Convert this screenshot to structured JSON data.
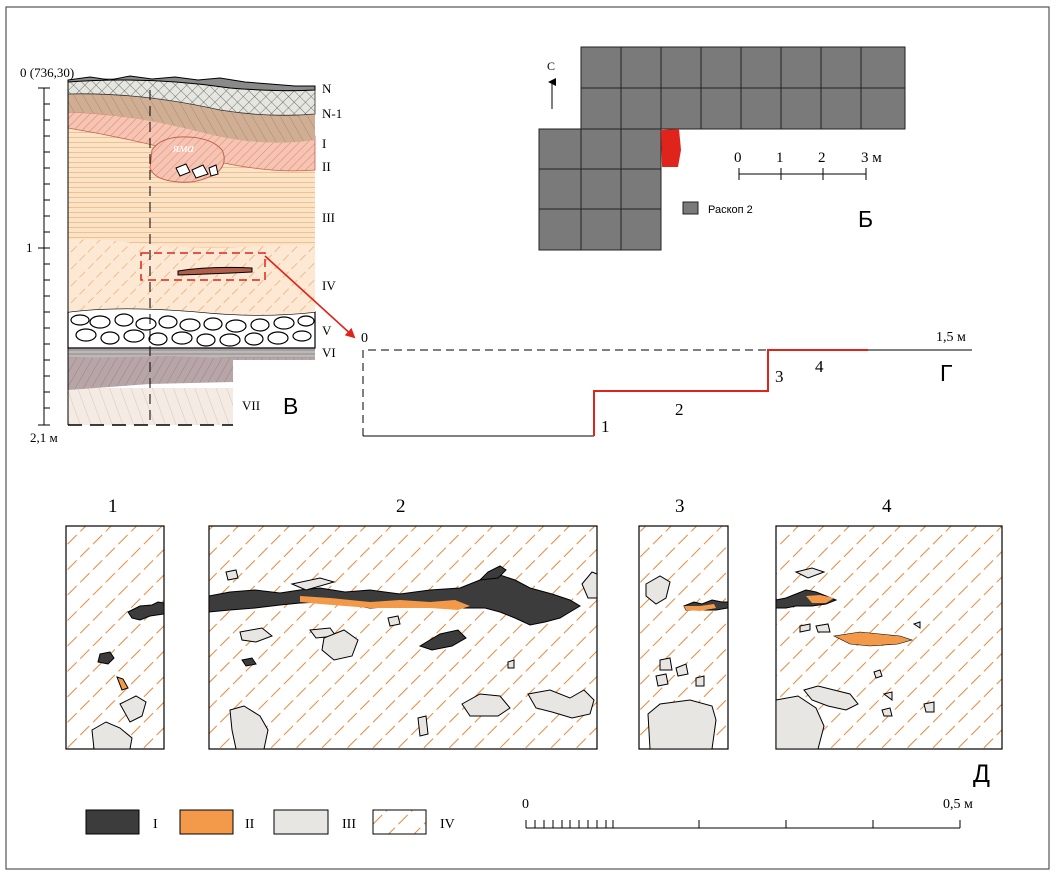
{
  "colors": {
    "frame": "#555555",
    "excavation_cell": "#7a7a7a",
    "highlight_red": "#e0241b",
    "layer_I_fill": "#3c3c3c",
    "layer_II_fill": "#f29a4a",
    "layer_III_fill": "#e8e6e3",
    "layer_IV_hatch": "#e8883a",
    "loam_beige": "#fbe3c7",
    "pinkish": "#f3b3a0",
    "brown": "#c9a58a",
    "grey_layer": "#c8c8c8",
    "lilac": "#b5a3a6"
  },
  "panel_b": {
    "north": "С",
    "scale_ticks": [
      "0",
      "1",
      "2",
      "3 м"
    ],
    "legend_label": "Раскоп 2",
    "letter": "Б"
  },
  "panel_v": {
    "top_label": "0 (736,30)",
    "mid_label": "1",
    "bottom_label": "2,1 м",
    "pit_label": "яма",
    "layers": [
      "N",
      "N-1",
      "I",
      "II",
      "III",
      "IV",
      "V",
      "VI",
      "VII"
    ],
    "letter": "В"
  },
  "panel_g": {
    "start": "0",
    "end": "1,5 м",
    "points": [
      "1",
      "2",
      "3",
      "4"
    ],
    "letter": "Г"
  },
  "panel_d": {
    "titles": [
      "1",
      "2",
      "3",
      "4"
    ],
    "letter": "Д"
  },
  "legend": {
    "items": [
      "I",
      "II",
      "III",
      "IV"
    ]
  },
  "scale_d": {
    "start": "0",
    "end": "0,5 м"
  }
}
